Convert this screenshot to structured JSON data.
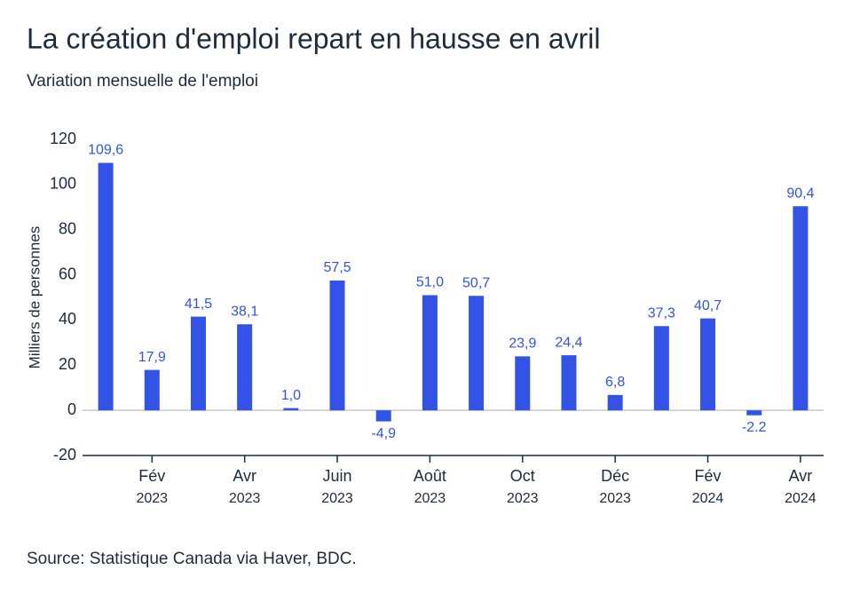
{
  "chart_data": {
    "type": "bar",
    "title": "La création d'emploi repart en hausse en avril",
    "subtitle": "Variation mensuelle de l'emploi",
    "ylabel": "Milliers de personnes",
    "source": "Source: Statistique Canada via Haver, BDC.",
    "categories": [
      null,
      [
        "Fév",
        "2023"
      ],
      null,
      [
        "Avr",
        "2023"
      ],
      null,
      [
        "Juin",
        "2023"
      ],
      null,
      [
        "Août",
        "2023"
      ],
      null,
      [
        "Oct",
        "2023"
      ],
      null,
      [
        "Déc",
        "2023"
      ],
      null,
      [
        "Fév",
        "2024"
      ],
      null,
      [
        "Avr",
        "2024"
      ]
    ],
    "values": [
      109.6,
      17.9,
      41.5,
      38.1,
      1.0,
      57.5,
      -4.9,
      51.0,
      50.7,
      23.9,
      24.4,
      6.8,
      37.3,
      40.7,
      -2.2,
      90.4
    ],
    "value_labels": [
      "109,6",
      "17,9",
      "41,5",
      "38,1",
      "1,0",
      "57,5",
      "-4,9",
      "51,0",
      "50,7",
      "23,9",
      "24,4",
      "6,8",
      "37,3",
      "40,7",
      "-2.2",
      "90,4"
    ],
    "color": "#3352e6",
    "ylim": [
      -20,
      120
    ],
    "yticks": [
      -20,
      0,
      20,
      40,
      60,
      80,
      100,
      120
    ],
    "grid": false
  }
}
